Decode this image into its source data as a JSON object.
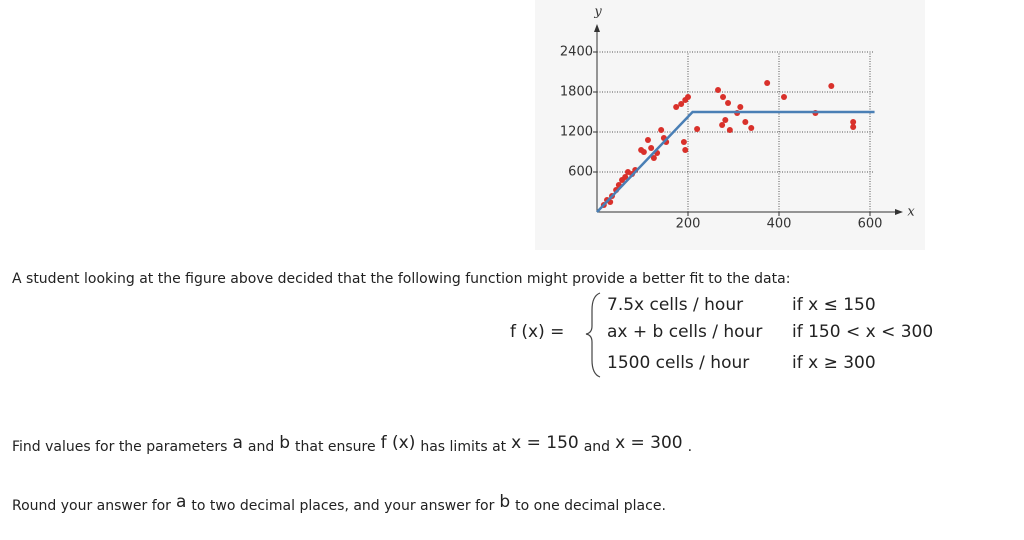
{
  "chart_data": {
    "type": "scatter",
    "x_label": "x",
    "y_label": "y",
    "xlim": [
      0,
      640
    ],
    "ylim": [
      0,
      2700
    ],
    "xticks": [
      200,
      400,
      600
    ],
    "yticks": [
      600,
      1200,
      1800,
      2400
    ],
    "grid": true,
    "series": [
      {
        "type": "scatter",
        "color": "#d9312b",
        "x": [
          15,
          22,
          29,
          33,
          42,
          48,
          55,
          62,
          68,
          77,
          84,
          97,
          103,
          112,
          119,
          125,
          132,
          141,
          147,
          152,
          174,
          185,
          194,
          200,
          191,
          194,
          220,
          266,
          277,
          275,
          282,
          288,
          292,
          308,
          315,
          326,
          339,
          374,
          411,
          480,
          515,
          563,
          563
        ],
        "values": [
          105,
          180,
          150,
          240,
          330,
          405,
          480,
          525,
          600,
          570,
          630,
          930,
          900,
          1080,
          960,
          810,
          885,
          1230,
          1110,
          1050,
          1575,
          1620,
          1680,
          1725,
          1050,
          930,
          1245,
          1830,
          1725,
          1305,
          1380,
          1635,
          1230,
          1485,
          1575,
          1350,
          1260,
          1935,
          1725,
          1485,
          1890,
          1350,
          1275
        ]
      },
      {
        "type": "line",
        "color": "#4a7fb5",
        "x": [
          0,
          210,
          610
        ],
        "values": [
          0,
          1500,
          1500
        ]
      }
    ]
  },
  "text": {
    "intro": "A student looking at the figure above decided that the following function might provide a better fit to the data:",
    "function": {
      "lhs": "f (x) =",
      "pieces": [
        [
          "7.5x cells / hour",
          "if x ≤ 150"
        ],
        [
          "ax + b cells / hour",
          "if 150 < x < 300"
        ],
        [
          "1500 cells / hour",
          "if x ≥ 300"
        ]
      ]
    },
    "find": [
      "Find values for the parameters",
      "a",
      "and",
      "b",
      "that ensure",
      "f (x)",
      "has limits at",
      "x = 150",
      "and",
      "x = 300",
      "."
    ],
    "round": [
      "Round your answer for",
      "a",
      "to two decimal places, and your answer for",
      "b",
      "to one decimal place."
    ]
  }
}
